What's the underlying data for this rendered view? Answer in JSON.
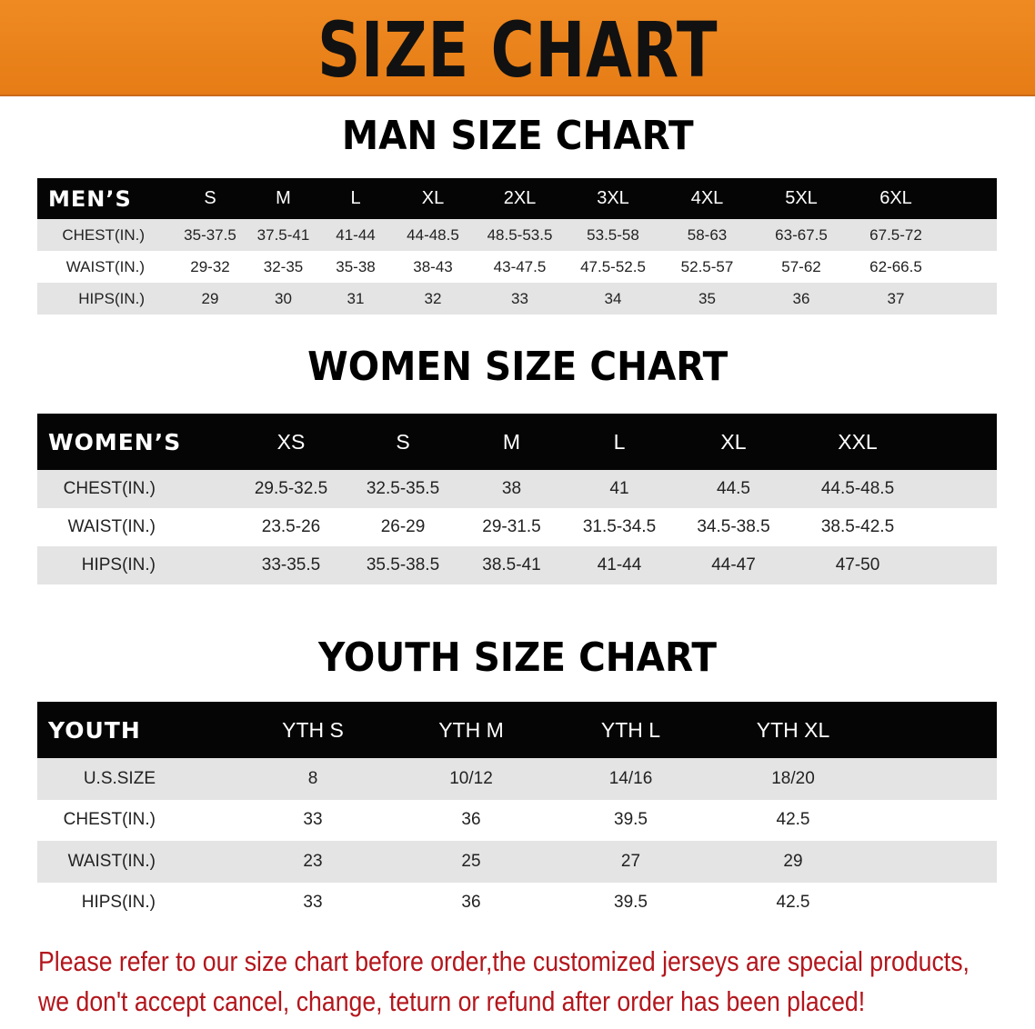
{
  "banner_title": "SIZE CHART",
  "colors": {
    "banner": "#e98319",
    "header_row": "#050505",
    "stripe": "#e4e4e4",
    "note": "#b3161c"
  },
  "men": {
    "title": "MAN SIZE CHART",
    "header": [
      "MEN’S",
      "S",
      "M",
      "L",
      "XL",
      "2XL",
      "3XL",
      "4XL",
      "5XL",
      "6XL"
    ],
    "rows": [
      [
        "CHEST(IN.)",
        "35-37.5",
        "37.5-41",
        "41-44",
        "44-48.5",
        "48.5-53.5",
        "53.5-58",
        "58-63",
        "63-67.5",
        "67.5-72"
      ],
      [
        "WAIST(IN.)",
        "29-32",
        "32-35",
        "35-38",
        "38-43",
        "43-47.5",
        "47.5-52.5",
        "52.5-57",
        "57-62",
        "62-66.5"
      ],
      [
        "HIPS(IN.)",
        "29",
        "30",
        "31",
        "32",
        "33",
        "34",
        "35",
        "36",
        "37"
      ]
    ]
  },
  "women": {
    "title": "WOMEN SIZE CHART",
    "header": [
      "WOMEN’S",
      "XS",
      "S",
      "M",
      "L",
      "XL",
      "XXL"
    ],
    "rows": [
      [
        "CHEST(IN.)",
        "29.5-32.5",
        "32.5-35.5",
        "38",
        "41",
        "44.5",
        "44.5-48.5"
      ],
      [
        "WAIST(IN.)",
        "23.5-26",
        "26-29",
        "29-31.5",
        "31.5-34.5",
        "34.5-38.5",
        "38.5-42.5"
      ],
      [
        "HIPS(IN.)",
        "33-35.5",
        "35.5-38.5",
        "38.5-41",
        "41-44",
        "44-47",
        "47-50"
      ]
    ]
  },
  "youth": {
    "title": "YOUTH SIZE CHART",
    "header": [
      "YOUTH",
      "YTH S",
      "YTH M",
      "YTH L",
      "YTH XL"
    ],
    "rows": [
      [
        "U.S.SIZE",
        "8",
        "10/12",
        "14/16",
        "18/20"
      ],
      [
        "CHEST(IN.)",
        "33",
        "36",
        "39.5",
        "42.5"
      ],
      [
        "WAIST(IN.)",
        "23",
        "25",
        "27",
        "29"
      ],
      [
        "HIPS(IN.)",
        "33",
        "36",
        "39.5",
        "42.5"
      ]
    ]
  },
  "note": {
    "line1": "Please refer to our size chart before order,the customized jerseys are special products,",
    "line2": "we don't accept cancel, change, teturn or refund after order has been placed!"
  }
}
